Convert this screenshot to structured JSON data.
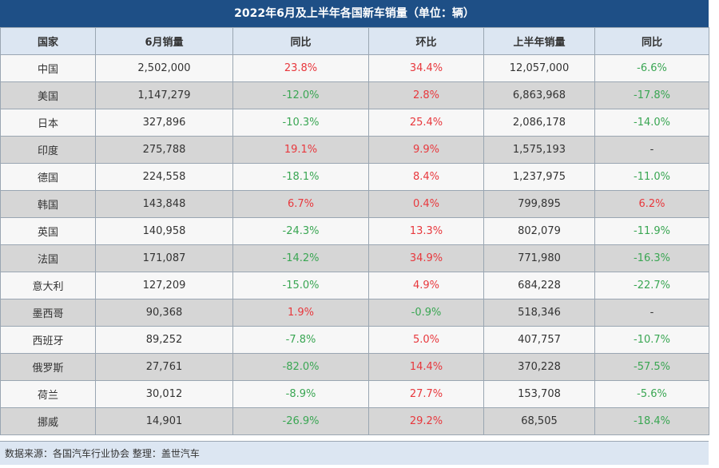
{
  "title": "2022年6月及上半年各国新车销量（单位：辆）",
  "headers": [
    "国家",
    "6月销量",
    "同比",
    "环比",
    "上半年销量",
    "同比"
  ],
  "rows": [
    {
      "country": "中国",
      "june": "2,502,000",
      "yoy": "23.8%",
      "mom": "34.4%",
      "h1": "12,057,000",
      "h1_yoy": "-6.6%"
    },
    {
      "country": "美国",
      "june": "1,147,279",
      "yoy": "-12.0%",
      "mom": "2.8%",
      "h1": "6,863,968",
      "h1_yoy": "-17.8%"
    },
    {
      "country": "日本",
      "june": "327,896",
      "yoy": "-10.3%",
      "mom": "25.4%",
      "h1": "2,086,178",
      "h1_yoy": "-14.0%"
    },
    {
      "country": "印度",
      "june": "275,788",
      "yoy": "19.1%",
      "mom": "9.9%",
      "h1": "1,575,193",
      "h1_yoy": "-"
    },
    {
      "country": "德国",
      "june": "224,558",
      "yoy": "-18.1%",
      "mom": "8.4%",
      "h1": "1,237,975",
      "h1_yoy": "-11.0%"
    },
    {
      "country": "韩国",
      "june": "143,848",
      "yoy": "6.7%",
      "mom": "0.4%",
      "h1": "799,895",
      "h1_yoy": "6.2%"
    },
    {
      "country": "英国",
      "june": "140,958",
      "yoy": "-24.3%",
      "mom": "13.3%",
      "h1": "802,079",
      "h1_yoy": "-11.9%"
    },
    {
      "country": "法国",
      "june": "171,087",
      "yoy": "-14.2%",
      "mom": "34.9%",
      "h1": "771,980",
      "h1_yoy": "-16.3%"
    },
    {
      "country": "意大利",
      "june": "127,209",
      "yoy": "-15.0%",
      "mom": "4.9%",
      "h1": "684,228",
      "h1_yoy": "-22.7%"
    },
    {
      "country": "墨西哥",
      "june": "90,368",
      "yoy": "1.9%",
      "mom": "-0.9%",
      "h1": "518,346",
      "h1_yoy": "-"
    },
    {
      "country": "西班牙",
      "june": "89,252",
      "yoy": "-7.8%",
      "mom": "5.0%",
      "h1": "407,757",
      "h1_yoy": "-10.7%"
    },
    {
      "country": "俄罗斯",
      "june": "27,761",
      "yoy": "-82.0%",
      "mom": "14.4%",
      "h1": "370,228",
      "h1_yoy": "-57.5%"
    },
    {
      "country": "荷兰",
      "june": "30,012",
      "yoy": "-8.9%",
      "mom": "27.7%",
      "h1": "153,708",
      "h1_yoy": "-5.6%"
    },
    {
      "country": "挪威",
      "june": "14,901",
      "yoy": "-26.9%",
      "mom": "29.2%",
      "h1": "68,505",
      "h1_yoy": "-18.4%"
    }
  ],
  "footer": "数据来源：各国汽车行业协会 整理：盖世汽车",
  "colors": {
    "header_bar": "#1e4f86",
    "positive": "#e8383d",
    "negative": "#3aa653",
    "header_row": "#dce6f2",
    "row_light": "#f7f7f7",
    "row_dark": "#d6d6d6"
  }
}
